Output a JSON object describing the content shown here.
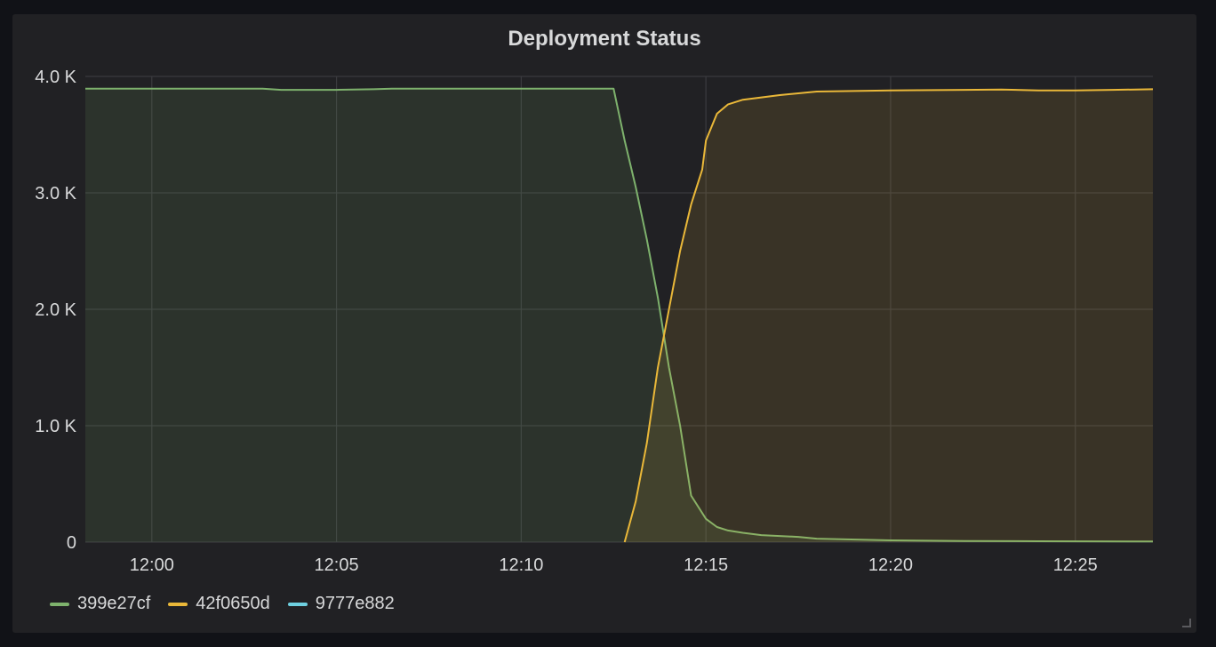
{
  "panel": {
    "title": "Deployment Status"
  },
  "colors": {
    "page_background": "#111217",
    "panel_background": "#212124",
    "grid": "#3b3b3f",
    "axis_text": "#d8d9da",
    "series_399e27cf": "#7eb26d",
    "series_42f0650d": "#eab839",
    "series_9777e882": "#6ed0e0"
  },
  "legend": [
    {
      "name": "399e27cf",
      "color": "#7eb26d"
    },
    {
      "name": "42f0650d",
      "color": "#eab839"
    },
    {
      "name": "9777e882",
      "color": "#6ed0e0"
    }
  ],
  "chart_data": {
    "type": "area",
    "title": "Deployment Status",
    "xlabel": "",
    "ylabel": "",
    "x_unit": "time (HH:MM)",
    "xlim": [
      "11:58:12",
      "12:27:06"
    ],
    "ylim": [
      0,
      4000
    ],
    "grid": true,
    "legend_position": "bottom-left",
    "x_ticks": [
      "12:00",
      "12:05",
      "12:10",
      "12:15",
      "12:20",
      "12:25"
    ],
    "y_ticks": [
      {
        "value": 0,
        "label": "0"
      },
      {
        "value": 1000,
        "label": "1.0 K"
      },
      {
        "value": 2000,
        "label": "2.0 K"
      },
      {
        "value": 3000,
        "label": "3.0 K"
      },
      {
        "value": 4000,
        "label": "4.0 K"
      }
    ],
    "series": [
      {
        "name": "399e27cf",
        "color": "#7eb26d",
        "points": [
          [
            "11:58:12",
            3895
          ],
          [
            "12:00:00",
            3895
          ],
          [
            "12:03:00",
            3895
          ],
          [
            "12:03:30",
            3885
          ],
          [
            "12:05:00",
            3885
          ],
          [
            "12:06:00",
            3890
          ],
          [
            "12:06:30",
            3895
          ],
          [
            "12:10:00",
            3895
          ],
          [
            "12:12:30",
            3895
          ],
          [
            "12:12:48",
            3450
          ],
          [
            "12:13:06",
            3050
          ],
          [
            "12:13:24",
            2600
          ],
          [
            "12:13:42",
            2100
          ],
          [
            "12:14:00",
            1500
          ],
          [
            "12:14:18",
            1000
          ],
          [
            "12:14:36",
            400
          ],
          [
            "12:15:00",
            200
          ],
          [
            "12:15:18",
            130
          ],
          [
            "12:15:36",
            100
          ],
          [
            "12:16:00",
            80
          ],
          [
            "12:16:30",
            60
          ],
          [
            "12:17:30",
            45
          ],
          [
            "12:18:00",
            30
          ],
          [
            "12:20:00",
            15
          ],
          [
            "12:22:00",
            10
          ],
          [
            "12:24:00",
            8
          ],
          [
            "12:27:06",
            5
          ]
        ]
      },
      {
        "name": "42f0650d",
        "color": "#eab839",
        "points": [
          [
            "12:12:48",
            0
          ],
          [
            "12:13:06",
            350
          ],
          [
            "12:13:24",
            850
          ],
          [
            "12:13:42",
            1500
          ],
          [
            "12:14:00",
            2000
          ],
          [
            "12:14:18",
            2500
          ],
          [
            "12:14:36",
            2900
          ],
          [
            "12:14:54",
            3200
          ],
          [
            "12:15:00",
            3450
          ],
          [
            "12:15:18",
            3680
          ],
          [
            "12:15:36",
            3760
          ],
          [
            "12:16:00",
            3800
          ],
          [
            "12:16:30",
            3820
          ],
          [
            "12:17:00",
            3840
          ],
          [
            "12:17:30",
            3855
          ],
          [
            "12:18:00",
            3870
          ],
          [
            "12:19:00",
            3875
          ],
          [
            "12:20:00",
            3880
          ],
          [
            "12:22:00",
            3885
          ],
          [
            "12:23:00",
            3888
          ],
          [
            "12:24:00",
            3880
          ],
          [
            "12:25:00",
            3880
          ],
          [
            "12:26:00",
            3885
          ],
          [
            "12:27:06",
            3890
          ]
        ]
      },
      {
        "name": "9777e882",
        "color": "#6ed0e0",
        "points": []
      }
    ]
  }
}
